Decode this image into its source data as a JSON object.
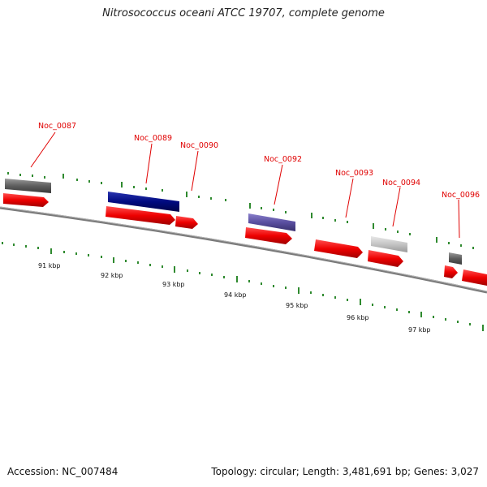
{
  "title": "Nitrosococcus oceani ATCC 19707, complete genome",
  "footer": {
    "accession": "Accession: NC_007484",
    "summary": "Topology: circular; Length: 3,481,691 bp; Genes: 3,027"
  },
  "colors": {
    "backbone": "#8a8a8a",
    "cds": "#ee0000",
    "label": "#e00000",
    "tick": "#2f8a2f",
    "feature_dark_gray": "#6a6a6a",
    "feature_navy": "#000a80",
    "feature_slate": "#5a4fa0",
    "feature_light_gray": "#c4c4c4"
  },
  "genes": [
    {
      "label": "Noc_0087"
    },
    {
      "label": "Noc_0089"
    },
    {
      "label": "Noc_0090"
    },
    {
      "label": "Noc_0092"
    },
    {
      "label": "Noc_0093"
    },
    {
      "label": "Noc_0094"
    },
    {
      "label": "Noc_0096"
    }
  ],
  "scale": [
    {
      "label": "91 kbp"
    },
    {
      "label": "92 kbp"
    },
    {
      "label": "93 kbp"
    },
    {
      "label": "94 kbp"
    },
    {
      "label": "95 kbp"
    },
    {
      "label": "96 kbp"
    },
    {
      "label": "97 kbp"
    }
  ]
}
